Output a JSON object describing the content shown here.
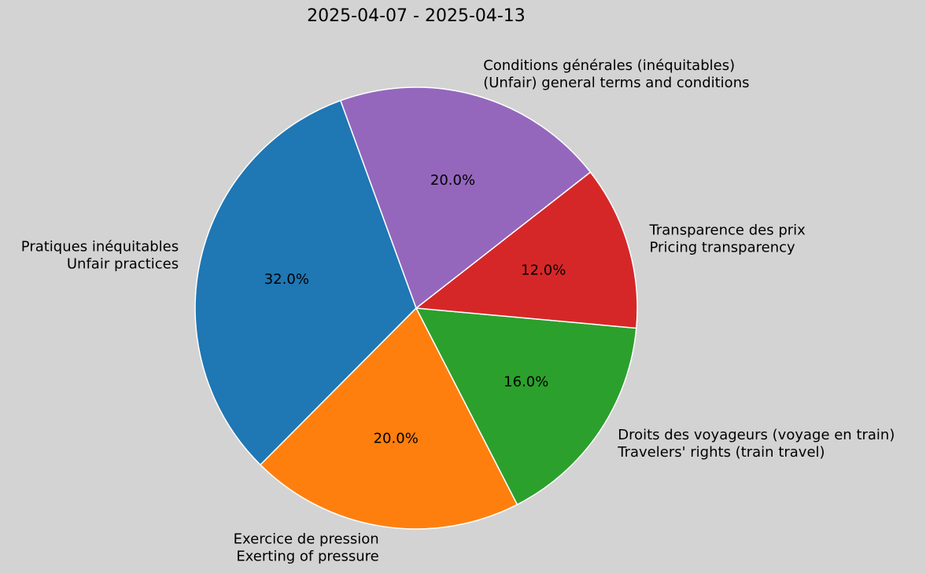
{
  "chart_data": {
    "type": "pie",
    "title": "2025-04-07 - 2025-04-13",
    "categories": [
      [
        "Pratiques inéquitables",
        "Unfair practices"
      ],
      [
        "Exercice de pression",
        "Exerting of pressure"
      ],
      [
        "Droits des voyageurs (voyage en train)",
        "Travelers' rights (train travel)"
      ],
      [
        "Transparence des prix",
        "Pricing transparency"
      ],
      [
        "Conditions générales (inéquitables)",
        "(Unfair) general terms and conditions"
      ]
    ],
    "values": [
      32,
      20,
      16,
      12,
      20
    ],
    "value_labels": [
      "32.0%",
      "20.0%",
      "16.0%",
      "12.0%",
      "20.0%"
    ],
    "colors": [
      "#1f77b4",
      "#ff7f0e",
      "#2ca02c",
      "#d62728",
      "#9467bd"
    ],
    "startangle": 110,
    "counterclock": true,
    "edgecolor": "#ffffff"
  }
}
